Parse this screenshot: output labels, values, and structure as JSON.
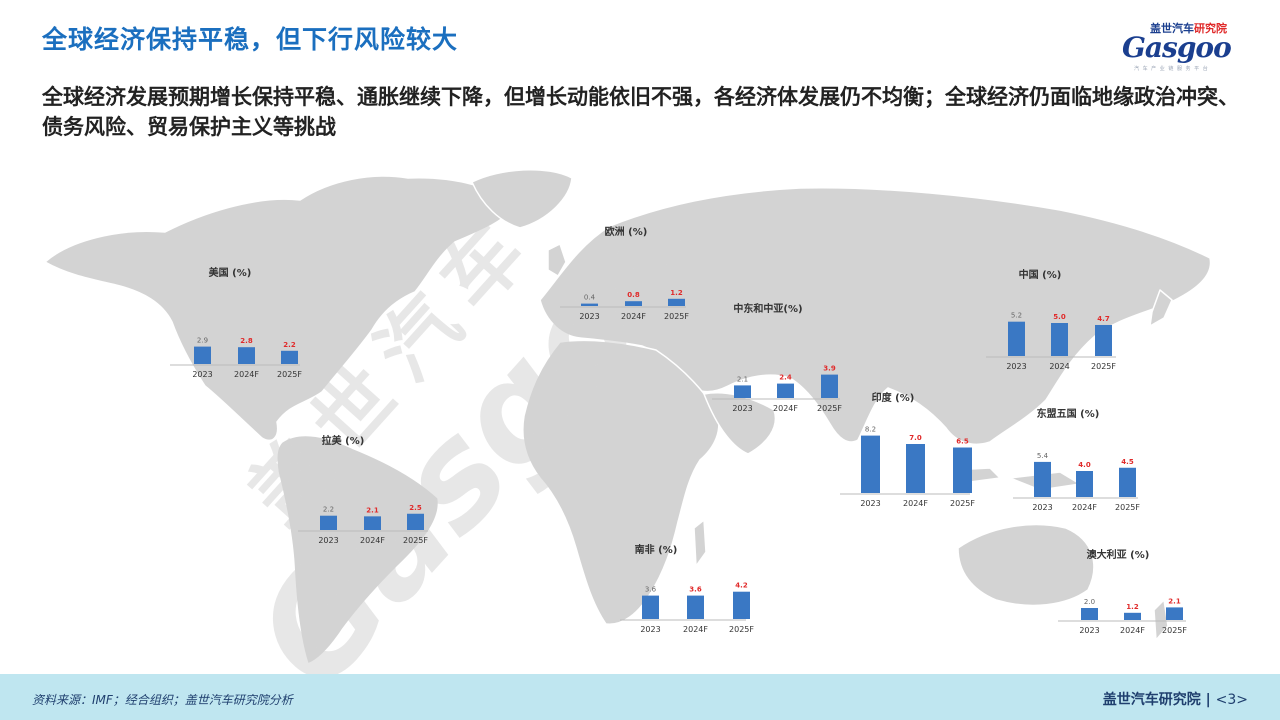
{
  "header": {
    "title": "全球经济保持平稳，但下行风险较大",
    "subtitle": "全球经济发展预期增长保持平稳、通胀继续下降，但增长动能依旧不强，各经济体发展仍不均衡；全球经济仍面临地缘政治冲突、债务风险、贸易保护主义等挑战"
  },
  "logo": {
    "top_text_dark": "盖世汽车",
    "top_text_red": "研究院",
    "brand": "Gasgoo",
    "tagline": "汽 车 产 业 链 服 务 平 台"
  },
  "watermark": {
    "cn": "盖世汽车",
    "en": "Gasgoo"
  },
  "footer": {
    "source": "资料来源：IMF；经合组织；盖世汽车研究院分析",
    "org": "盖世汽车研究院",
    "page": "<3>"
  },
  "colors": {
    "bar": "#3a78c4",
    "forecast_label": "#e02a2a",
    "actual_label": "#666666",
    "map_land": "#d3d3d3",
    "title": "#1b6fbf"
  },
  "chart_data": [
    {
      "type": "bar",
      "title": "美国 (%)",
      "categories": [
        "2023",
        "2024F",
        "2025F"
      ],
      "values": [
        2.9,
        2.8,
        2.2
      ],
      "ylim": [
        0,
        10
      ]
    },
    {
      "type": "bar",
      "title": "欧洲 (%)",
      "categories": [
        "2023",
        "2024F",
        "2025F"
      ],
      "values": [
        0.4,
        0.8,
        1.2
      ],
      "ylim": [
        0,
        10
      ]
    },
    {
      "type": "bar",
      "title": "中东和中亚(%)",
      "categories": [
        "2023",
        "2024F",
        "2025F"
      ],
      "values": [
        2.1,
        2.4,
        3.9
      ],
      "ylim": [
        0,
        10
      ]
    },
    {
      "type": "bar",
      "title": "中国 (%)",
      "categories": [
        "2023",
        "2024",
        "2025F"
      ],
      "values": [
        5.2,
        5.0,
        4.7
      ],
      "ylim": [
        0,
        10
      ]
    },
    {
      "type": "bar",
      "title": "印度 (%)",
      "categories": [
        "2023",
        "2024F",
        "2025F"
      ],
      "values": [
        8.2,
        7.0,
        6.5
      ],
      "ylim": [
        0,
        10
      ]
    },
    {
      "type": "bar",
      "title": "东盟五国 (%)",
      "categories": [
        "2023",
        "2024F",
        "2025F"
      ],
      "values": [
        5.4,
        4.0,
        4.5
      ],
      "ylim": [
        0,
        10
      ]
    },
    {
      "type": "bar",
      "title": "拉美 (%)",
      "categories": [
        "2023",
        "2024F",
        "2025F"
      ],
      "values": [
        2.2,
        2.1,
        2.5
      ],
      "ylim": [
        0,
        10
      ]
    },
    {
      "type": "bar",
      "title": "南非 (%)",
      "categories": [
        "2023",
        "2024F",
        "2025F"
      ],
      "values": [
        3.6,
        3.6,
        4.2
      ],
      "ylim": [
        0,
        10
      ]
    },
    {
      "type": "bar",
      "title": "澳大利亚 (%)",
      "categories": [
        "2023",
        "2024F",
        "2025F"
      ],
      "values": [
        2.0,
        1.2,
        2.1
      ],
      "ylim": [
        0,
        10
      ]
    }
  ]
}
